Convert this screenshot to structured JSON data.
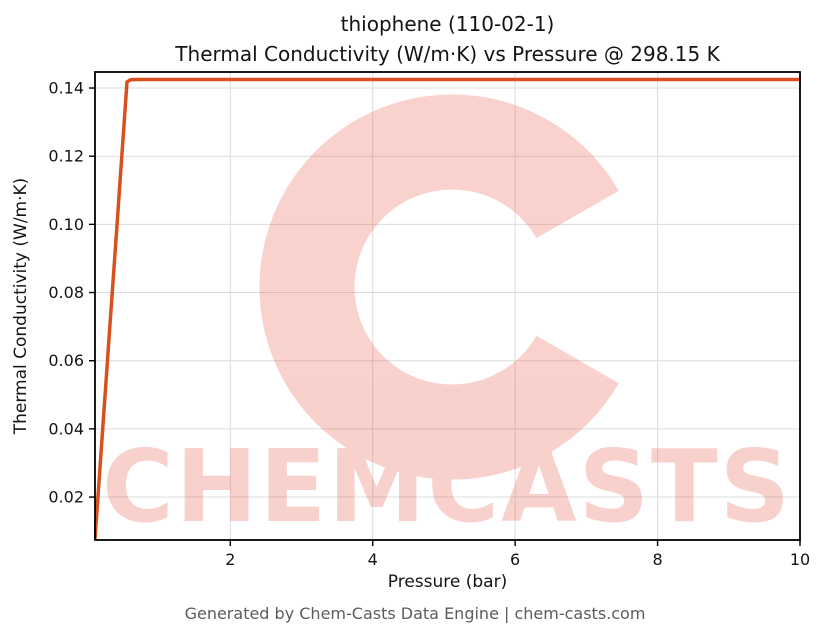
{
  "page": {
    "background": "#ffffff"
  },
  "chart_data": {
    "type": "line",
    "title": "thiophene (110-02-1)",
    "subtitle": "Thermal Conductivity (W/m·K) vs Pressure @ 298.15 K",
    "xlabel": "Pressure (bar)",
    "ylabel": "Thermal Conductivity (W/m·K)",
    "xlim": [
      0.1,
      10
    ],
    "ylim": [
      0.0074,
      0.1447
    ],
    "x_ticks": [
      2,
      4,
      6,
      8,
      10
    ],
    "y_ticks": [
      0.02,
      0.04,
      0.06,
      0.08,
      0.1,
      0.12,
      0.14
    ],
    "grid": true,
    "legend": "none",
    "line_color": "#d8501d",
    "line_width": 3.5,
    "series": [
      {
        "name": "thermal conductivity",
        "x": [
          0.1,
          0.15,
          0.2,
          0.25,
          0.3,
          0.35,
          0.4,
          0.45,
          0.5,
          0.55,
          0.6,
          0.7,
          0.8,
          1,
          1.5,
          2,
          3,
          4,
          5,
          6,
          7,
          8,
          9,
          10
        ],
        "y": [
          0.0078,
          0.0227,
          0.0376,
          0.0525,
          0.0674,
          0.0823,
          0.0972,
          0.1121,
          0.127,
          0.1418,
          0.1424,
          0.1425,
          0.1425,
          0.1425,
          0.1425,
          0.1425,
          0.1425,
          0.1425,
          0.1425,
          0.1425,
          0.1425,
          0.1425,
          0.1425,
          0.1425
        ]
      }
    ]
  },
  "watermark": {
    "text": "CHEMCASTS",
    "logo": "c-swirl-logo",
    "color": "#e85a4a",
    "opacity": 0.28
  },
  "footer": {
    "credit": "Generated by Chem-Casts Data Engine | chem-casts.com"
  }
}
